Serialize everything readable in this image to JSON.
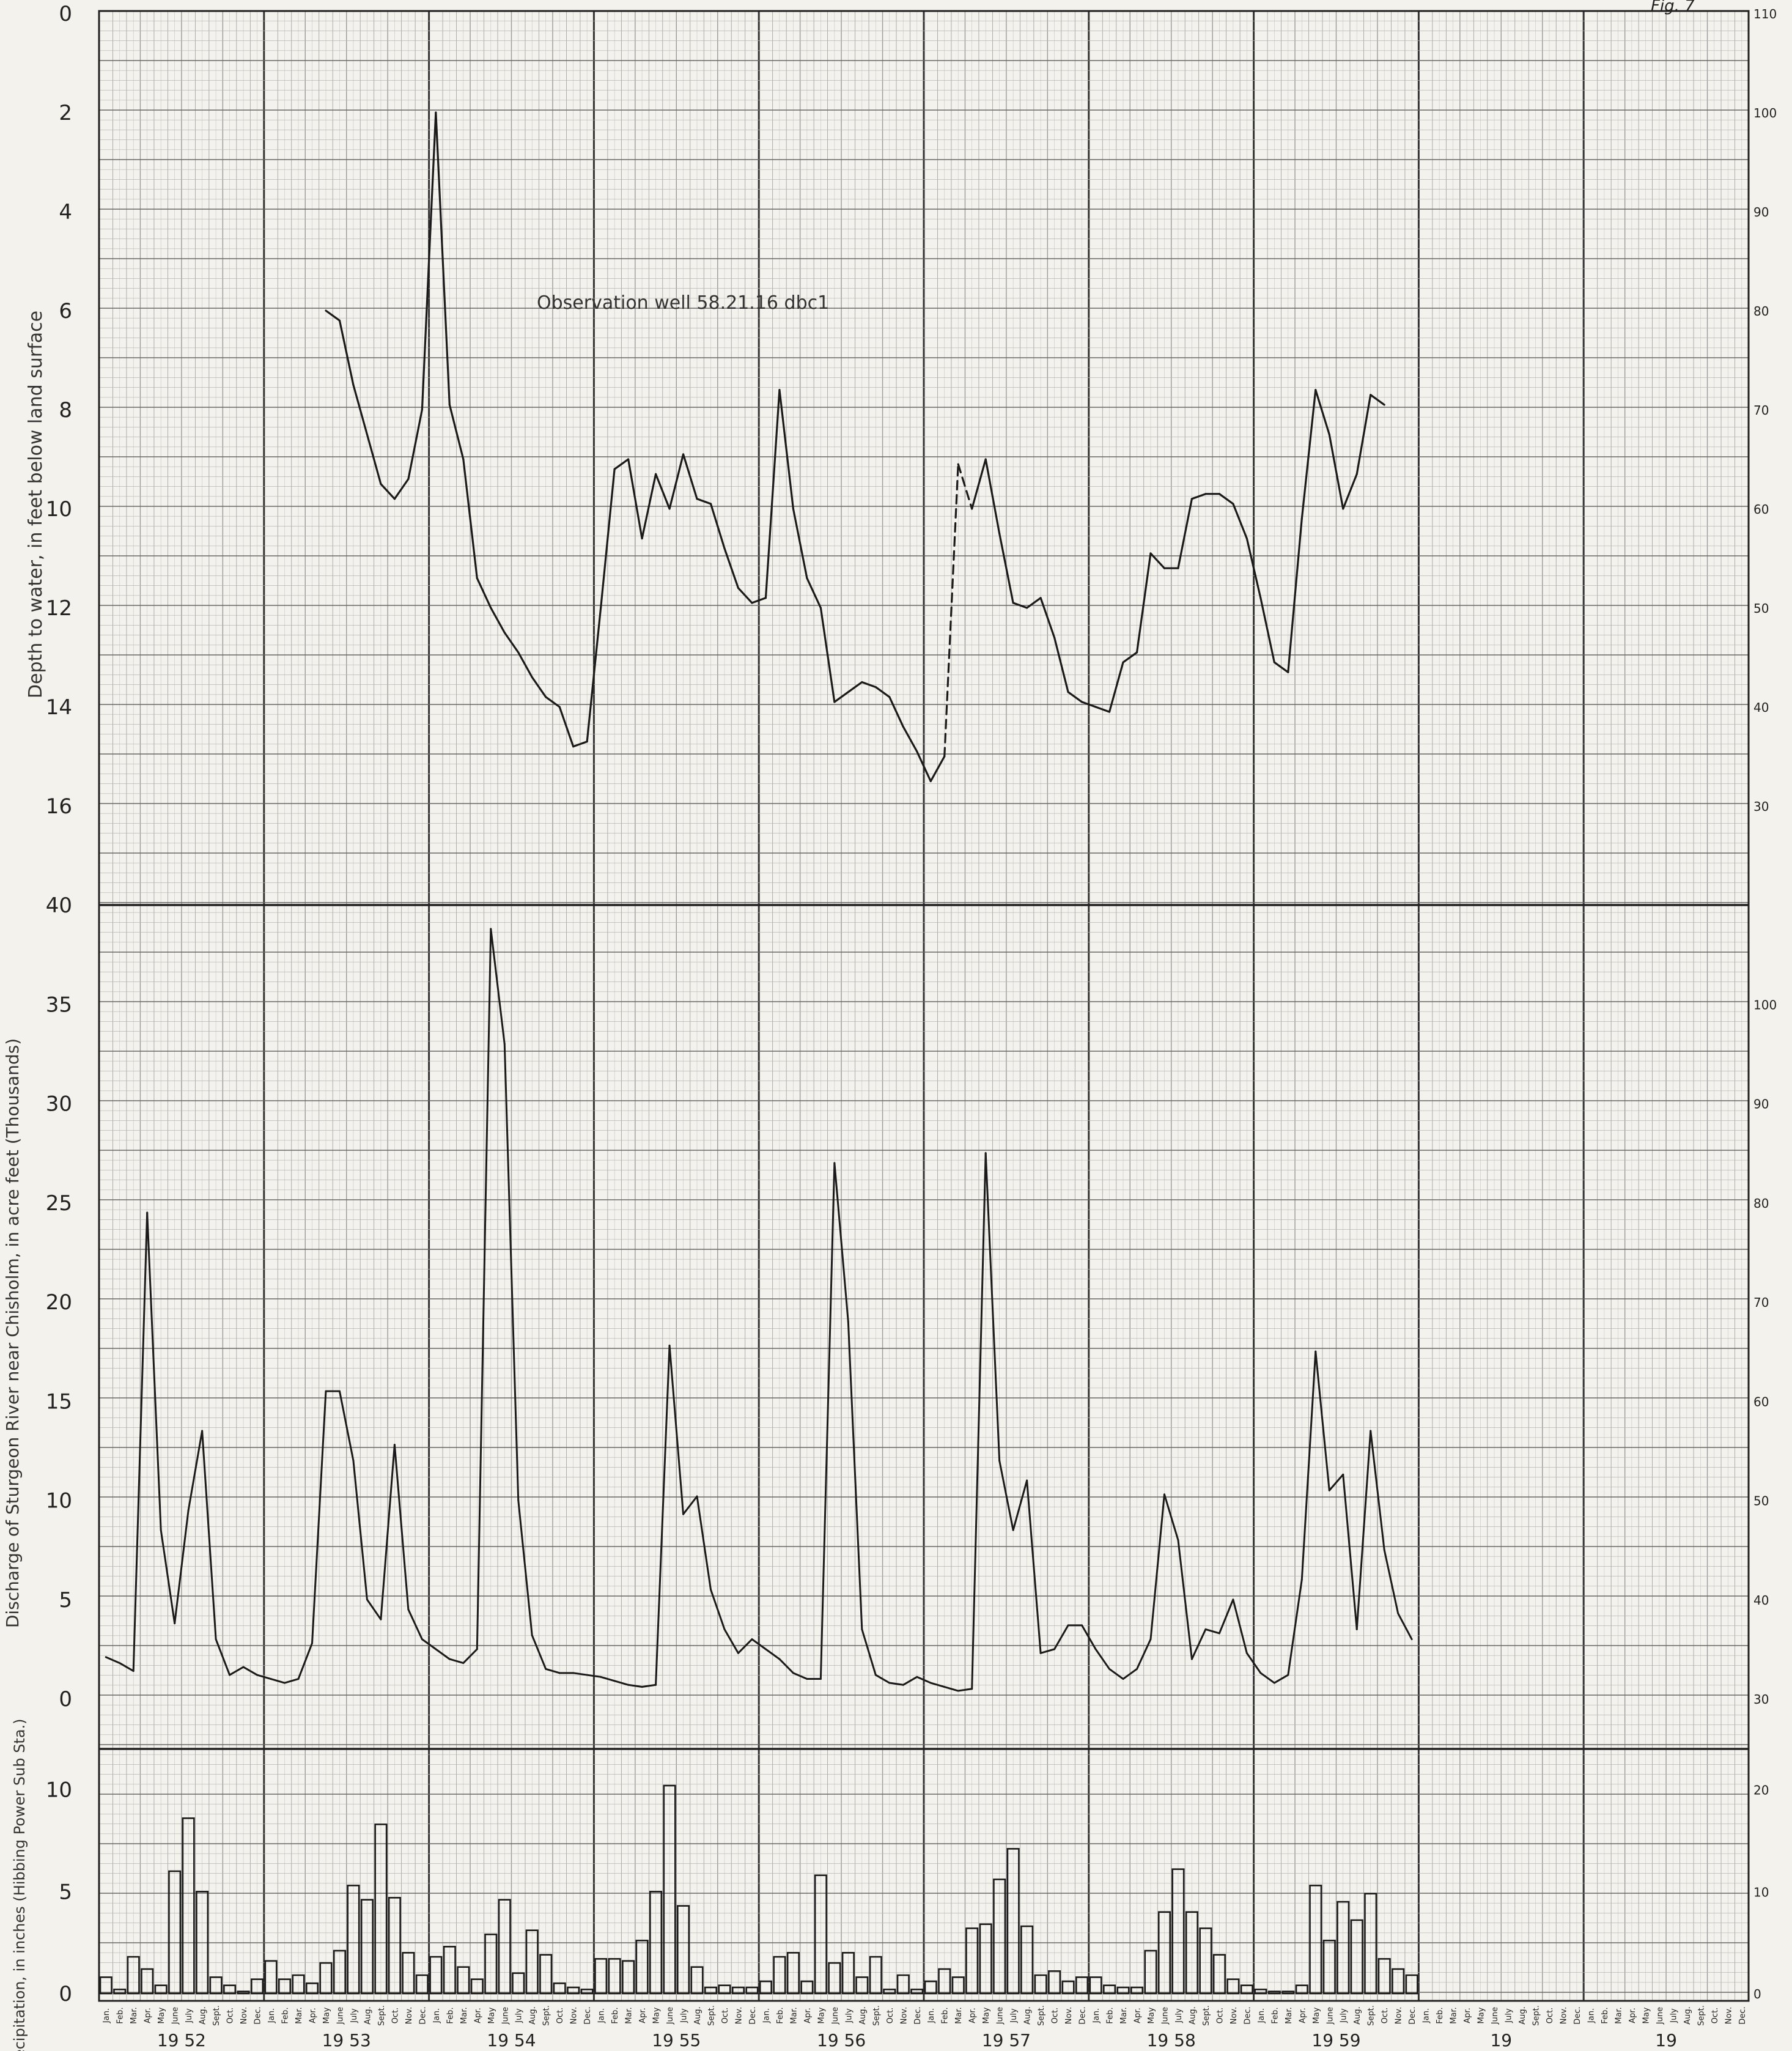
{
  "figure_label": "Fig. 7",
  "chart_data": [
    {
      "type": "line",
      "annotation": "Observation well 58.21.16 dbc1",
      "ylabel": "Depth to water, in feet below land surface",
      "y_axis_inverted": true,
      "ylim": [
        0,
        18
      ],
      "y_ticks": [
        "0",
        "2",
        "4",
        "6",
        "8",
        "10",
        "12",
        "14",
        "16"
      ],
      "secondary_y_ticks": [
        "110",
        "100",
        "90",
        "80",
        "70",
        "60",
        "50",
        "40",
        "30"
      ],
      "x_unit": "months since Jan 1952",
      "dashed_segments": [
        [
          61,
          63
        ],
        [
          94,
          96
        ]
      ],
      "series": [
        {
          "points": [
            [
              16.5,
              6.0
            ],
            [
              17.5,
              6.2
            ],
            [
              18.5,
              7.5
            ],
            [
              19.5,
              8.5
            ],
            [
              20.5,
              9.5
            ],
            [
              21.5,
              9.8
            ],
            [
              22.5,
              9.4
            ],
            [
              23.5,
              8.0
            ],
            [
              24.5,
              2.0
            ],
            [
              25.5,
              7.9
            ],
            [
              26.5,
              9.0
            ],
            [
              27.5,
              11.4
            ],
            [
              28.5,
              12.0
            ],
            [
              29.5,
              12.5
            ],
            [
              30.5,
              12.9
            ],
            [
              31.5,
              13.4
            ],
            [
              32.5,
              13.8
            ],
            [
              33.5,
              14.0
            ],
            [
              34.5,
              14.8
            ],
            [
              35.5,
              14.7
            ],
            [
              36.5,
              12.0
            ],
            [
              37.5,
              9.2
            ],
            [
              38.5,
              9.0
            ],
            [
              39.5,
              10.6
            ],
            [
              40.5,
              9.3
            ],
            [
              41.5,
              10.0
            ],
            [
              42.5,
              8.9
            ],
            [
              43.5,
              9.8
            ],
            [
              44.5,
              9.9
            ],
            [
              45.5,
              10.8
            ],
            [
              46.5,
              11.6
            ],
            [
              47.5,
              11.9
            ],
            [
              48.5,
              11.8
            ],
            [
              49.5,
              7.6
            ],
            [
              50.5,
              10.0
            ],
            [
              51.5,
              11.4
            ],
            [
              52.5,
              12.0
            ],
            [
              53.5,
              13.9
            ],
            [
              54.5,
              13.7
            ],
            [
              55.5,
              13.5
            ],
            [
              56.5,
              13.6
            ],
            [
              57.5,
              13.8
            ],
            [
              58.5,
              14.4
            ],
            [
              59.5,
              14.9
            ],
            [
              60.5,
              15.5
            ],
            [
              61.5,
              15.0
            ],
            [
              62.5,
              9.1
            ],
            [
              63.5,
              10.0
            ],
            [
              64.5,
              9.0
            ],
            [
              65.5,
              10.5
            ],
            [
              66.5,
              11.9
            ],
            [
              67.5,
              12.0
            ],
            [
              68.5,
              11.8
            ],
            [
              69.5,
              12.6
            ],
            [
              70.5,
              13.7
            ],
            [
              71.5,
              13.9
            ],
            [
              72.5,
              14.0
            ],
            [
              73.5,
              14.1
            ],
            [
              74.5,
              13.1
            ],
            [
              75.5,
              12.9
            ],
            [
              76.5,
              10.9
            ],
            [
              77.5,
              11.2
            ],
            [
              78.5,
              11.2
            ],
            [
              79.5,
              9.8
            ],
            [
              80.5,
              9.7
            ],
            [
              81.5,
              9.7
            ],
            [
              82.5,
              9.9
            ],
            [
              83.5,
              10.6
            ],
            [
              84.5,
              11.8
            ],
            [
              85.5,
              13.1
            ],
            [
              86.5,
              13.3
            ],
            [
              87.5,
              10.2
            ],
            [
              88.5,
              7.6
            ],
            [
              89.5,
              8.5
            ],
            [
              90.5,
              10.0
            ],
            [
              91.5,
              9.3
            ],
            [
              92.5,
              7.7
            ],
            [
              93.5,
              7.9
            ]
          ]
        }
      ]
    },
    {
      "type": "line",
      "ylabel": "Discharge of Sturgeon River near Chisholm, in acre feet (Thousands)",
      "ylim": [
        0,
        40
      ],
      "y_ticks": [
        "0",
        "5",
        "10",
        "15",
        "20",
        "25",
        "30",
        "35",
        "40"
      ],
      "secondary_y_ticks": [
        "30",
        "40",
        "50",
        "60",
        "70",
        "80",
        "90",
        "100"
      ],
      "x_unit": "months since Jan 1952",
      "series": [
        {
          "values": [
            2.1,
            1.8,
            1.4,
            24.5,
            8.5,
            3.8,
            9.5,
            13.5,
            3.0,
            1.2,
            1.6,
            1.2,
            1.0,
            0.8,
            1.0,
            2.8,
            15.5,
            15.5,
            12.0,
            5.0,
            4.0,
            12.8,
            4.5,
            3.0,
            2.5,
            2.0,
            1.8,
            2.5,
            38.8,
            33.0,
            10.0,
            3.2,
            1.5,
            1.3,
            1.3,
            1.2,
            1.1,
            0.9,
            0.7,
            0.6,
            0.7,
            17.8,
            9.3,
            10.2,
            5.5,
            3.5,
            2.3,
            3.0,
            2.5,
            2.0,
            1.3,
            1.0,
            1.0,
            27.0,
            19.0,
            3.5,
            1.2,
            0.8,
            0.7,
            1.1,
            0.8,
            0.6,
            0.4,
            0.5,
            27.5,
            12.0,
            8.5,
            11.0,
            2.3,
            2.5,
            3.7,
            3.7,
            2.5,
            1.5,
            1.0,
            1.5,
            3.0,
            10.3,
            8.0,
            2.0,
            3.5,
            3.3,
            5.0,
            2.3,
            1.3,
            0.8,
            1.2,
            6.0,
            17.5,
            10.5,
            11.3,
            3.5,
            13.5,
            7.5,
            4.3,
            3.0
          ]
        }
      ]
    },
    {
      "type": "bar",
      "ylabel": "Precipitation, in inches (Hibbing Power Sub Sta.)",
      "ylim": [
        0,
        12
      ],
      "y_ticks": [
        "0",
        "5",
        "10"
      ],
      "secondary_y_ticks": [
        "0",
        "10",
        "20"
      ],
      "months": [
        "Jan.",
        "Feb.",
        "Mar.",
        "Apr.",
        "May",
        "June",
        "July",
        "Aug.",
        "Sept.",
        "Oct.",
        "Nov.",
        "Dec."
      ],
      "years": [
        "19 52",
        "19 53",
        "19 54",
        "19 55",
        "19 56",
        "19 57",
        "19 58",
        "19 59",
        "19",
        "19"
      ],
      "values": [
        0.8,
        0.2,
        1.8,
        1.2,
        0.4,
        6.0,
        8.6,
        5.0,
        0.8,
        0.4,
        0.1,
        0.7,
        1.6,
        0.7,
        0.9,
        0.5,
        1.5,
        2.1,
        5.3,
        4.6,
        8.3,
        4.7,
        2.0,
        0.9,
        1.8,
        2.3,
        1.3,
        0.7,
        2.9,
        4.6,
        1.0,
        3.1,
        1.9,
        0.5,
        0.3,
        0.2,
        1.7,
        1.7,
        1.6,
        2.6,
        5.0,
        10.2,
        4.3,
        1.3,
        0.3,
        0.4,
        0.3,
        0.3,
        0.6,
        1.8,
        2.0,
        0.6,
        5.8,
        1.5,
        2.0,
        0.8,
        1.8,
        0.2,
        0.9,
        0.2,
        0.6,
        1.2,
        0.8,
        3.2,
        3.4,
        5.6,
        7.1,
        3.3,
        0.9,
        1.1,
        0.6,
        0.8,
        0.8,
        0.4,
        0.3,
        0.3,
        2.1,
        4.0,
        6.1,
        4.0,
        3.2,
        1.9,
        0.7,
        0.4,
        0.2,
        0.1,
        0.1,
        0.4,
        5.3,
        2.6,
        4.5,
        3.6,
        4.9,
        1.7,
        1.2,
        0.9
      ]
    }
  ]
}
